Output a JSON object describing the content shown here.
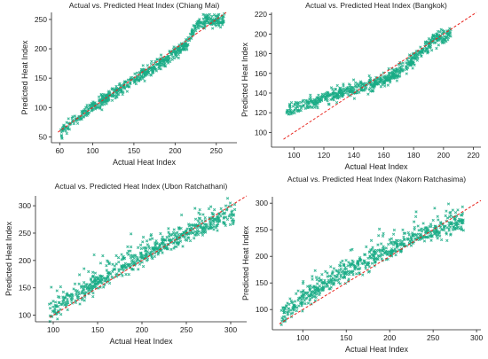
{
  "colors": {
    "points": "#1aab86",
    "reference": "#e8231c",
    "axis": "#222222"
  },
  "chart_data": [
    {
      "type": "scatter",
      "title": "Actual vs. Predicted Heat Index (Chiang Mai)",
      "xlabel": "Actual Heat Index",
      "ylabel": "Predicted Heat Index",
      "xlim": [
        50,
        275
      ],
      "ylim": [
        40,
        262
      ],
      "xticks": [
        60,
        100,
        150,
        200,
        250
      ],
      "yticks": [
        50,
        100,
        150,
        200,
        250
      ],
      "reference_line": "y = x",
      "grid": false,
      "point_marker": "x",
      "point_summary": [
        {
          "x": 60,
          "y": 55
        },
        {
          "x": 80,
          "y": 80
        },
        {
          "x": 100,
          "y": 100
        },
        {
          "x": 125,
          "y": 124
        },
        {
          "x": 150,
          "y": 148
        },
        {
          "x": 175,
          "y": 168
        },
        {
          "x": 200,
          "y": 195
        },
        {
          "x": 215,
          "y": 208
        },
        {
          "x": 225,
          "y": 240
        },
        {
          "x": 240,
          "y": 250
        },
        {
          "x": 260,
          "y": 248
        }
      ]
    },
    {
      "type": "scatter",
      "title": "Actual vs. Predicted Heat Index (Bangkok)",
      "xlabel": "Actual Heat Index",
      "ylabel": "Predicted Heat Index",
      "xlim": [
        85,
        225
      ],
      "ylim": [
        85,
        222
      ],
      "xticks": [
        100,
        120,
        140,
        160,
        180,
        200,
        220
      ],
      "yticks": [
        100,
        120,
        140,
        160,
        180,
        200,
        220
      ],
      "reference_line": "y = x",
      "grid": false,
      "point_marker": "x",
      "point_summary": [
        {
          "x": 95,
          "y": 122
        },
        {
          "x": 110,
          "y": 130
        },
        {
          "x": 125,
          "y": 138
        },
        {
          "x": 140,
          "y": 144
        },
        {
          "x": 155,
          "y": 150
        },
        {
          "x": 165,
          "y": 156
        },
        {
          "x": 175,
          "y": 168
        },
        {
          "x": 185,
          "y": 182
        },
        {
          "x": 195,
          "y": 195
        },
        {
          "x": 205,
          "y": 200
        }
      ]
    },
    {
      "type": "scatter",
      "title": "Actual vs. Predicted Heat Index (Ubon Ratchathani)",
      "xlabel": "Actual Heat Index",
      "ylabel": "Predicted Heat Index",
      "xlim": [
        80,
        318
      ],
      "ylim": [
        88,
        318
      ],
      "xticks": [
        100,
        150,
        200,
        250,
        300
      ],
      "yticks": [
        100,
        150,
        200,
        250,
        300
      ],
      "reference_line": "y = x",
      "grid": false,
      "point_marker": "x",
      "point_summary": [
        {
          "x": 95,
          "y": 103
        },
        {
          "x": 120,
          "y": 130
        },
        {
          "x": 150,
          "y": 160
        },
        {
          "x": 180,
          "y": 188
        },
        {
          "x": 210,
          "y": 215
        },
        {
          "x": 240,
          "y": 240
        },
        {
          "x": 270,
          "y": 262
        },
        {
          "x": 305,
          "y": 283
        }
      ]
    },
    {
      "type": "scatter",
      "title": "Actual vs. Predicted Heat Index (Nakorn Ratchasima)",
      "xlabel": "Actual Heat Index",
      "ylabel": "Predicted Heat Index",
      "xlim": [
        65,
        305
      ],
      "ylim": [
        62,
        312
      ],
      "xticks": [
        100,
        150,
        200,
        250,
        300
      ],
      "yticks": [
        100,
        150,
        200,
        250,
        300
      ],
      "reference_line": "y = x",
      "grid": false,
      "point_marker": "x",
      "point_summary": [
        {
          "x": 75,
          "y": 88
        },
        {
          "x": 100,
          "y": 118
        },
        {
          "x": 130,
          "y": 152
        },
        {
          "x": 160,
          "y": 180
        },
        {
          "x": 190,
          "y": 205
        },
        {
          "x": 220,
          "y": 228
        },
        {
          "x": 250,
          "y": 247
        },
        {
          "x": 285,
          "y": 262
        }
      ]
    }
  ]
}
